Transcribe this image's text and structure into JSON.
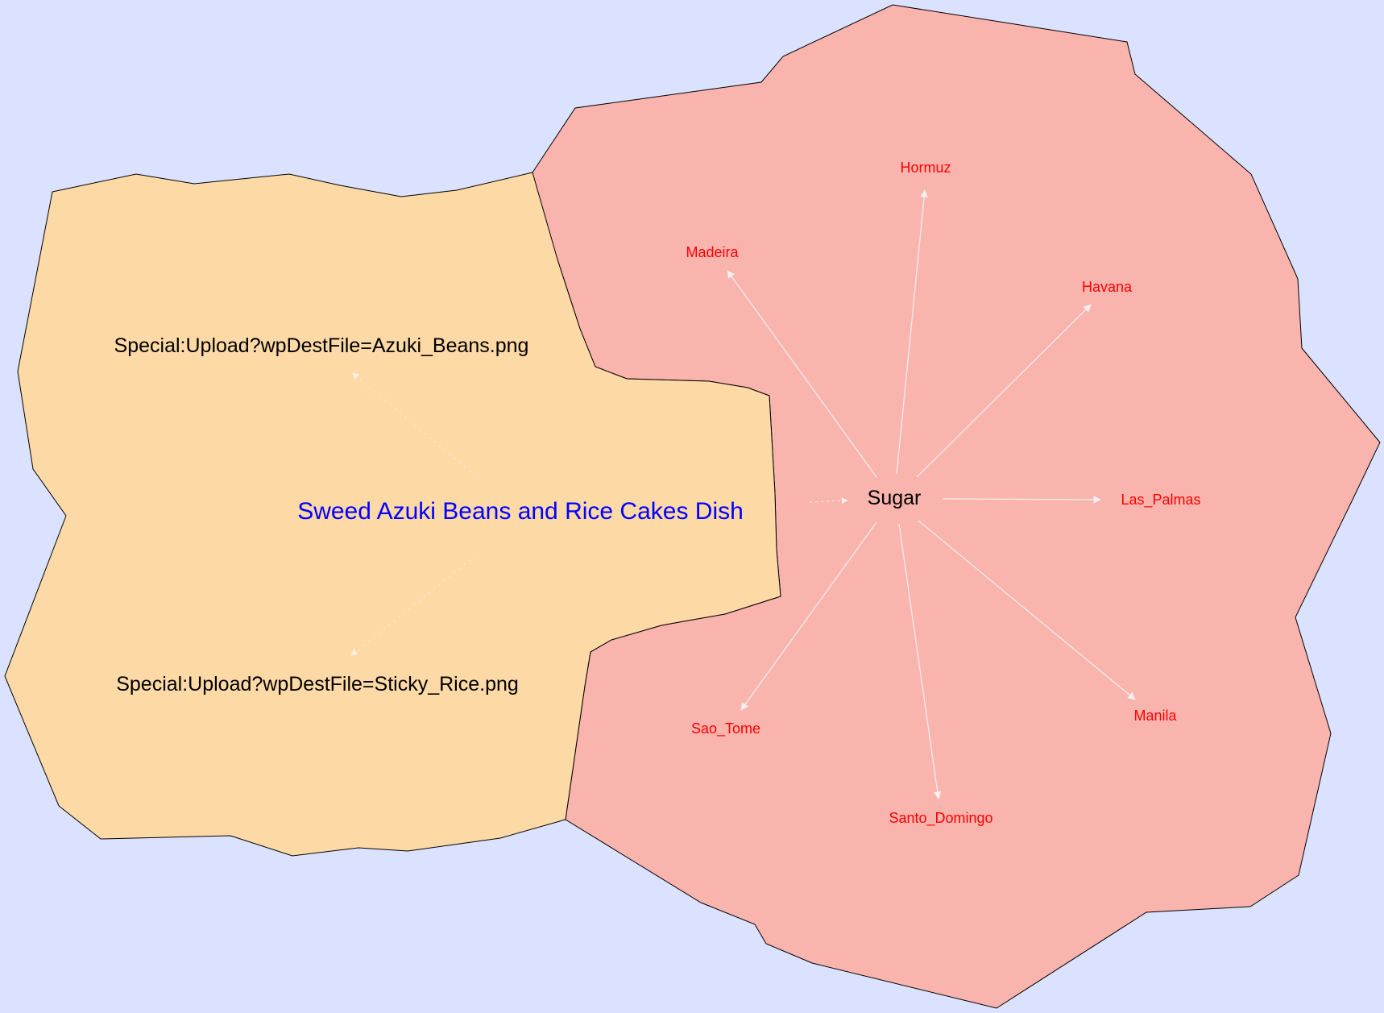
{
  "colors": {
    "background": "#dbe2ff",
    "left_region": "#fdd9a6",
    "right_region": "#fab4ae",
    "outline": "#000000",
    "edge": "#f0f0f0",
    "center_label": "#0000ff",
    "leaf_label": "#ff0000",
    "dark_label": "#000000"
  },
  "nodes": {
    "center": "Sweed Azuki Beans and Rice Cakes Dish",
    "azuki": "Special:Upload?wpDestFile=Azuki_Beans.png",
    "rice": "Special:Upload?wpDestFile=Sticky_Rice.png",
    "sugar": "Sugar",
    "hormuz": "Hormuz",
    "madeira": "Madeira",
    "havana": "Havana",
    "las_palmas": "Las_Palmas",
    "manila": "Manila",
    "santo_domingo": "Santo_Domingo",
    "sao_tome": "Sao_Tome"
  }
}
